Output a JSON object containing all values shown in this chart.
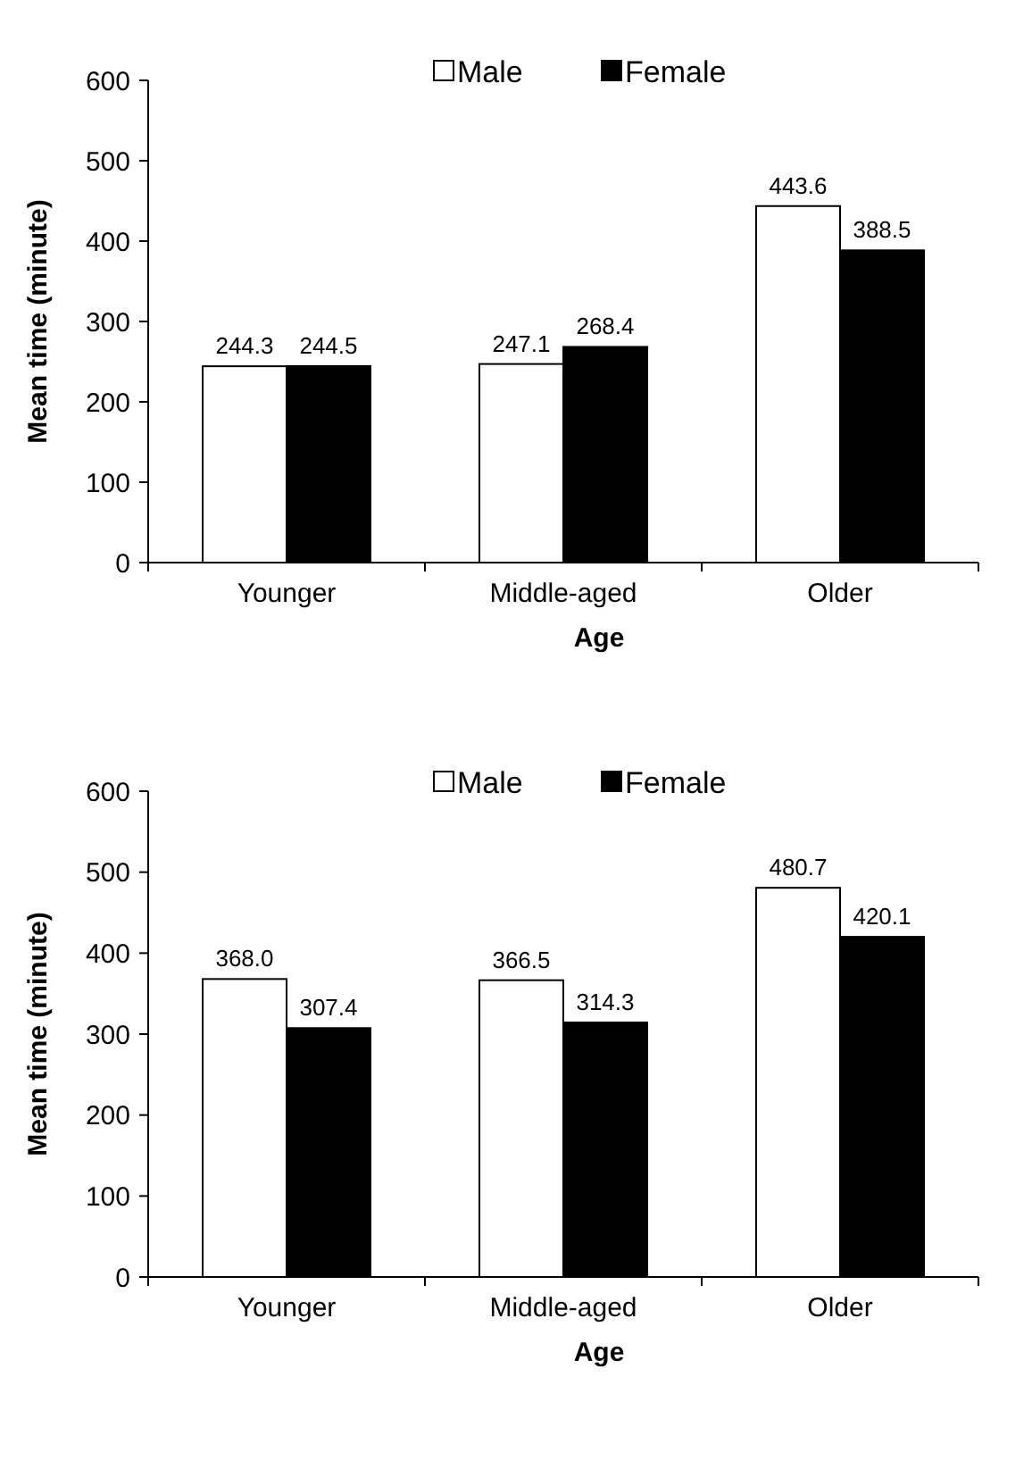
{
  "chart_data": [
    {
      "type": "bar",
      "xlabel": "Age",
      "ylabel": "Mean time (minute)",
      "categories": [
        "Younger",
        "Middle-aged",
        "Older"
      ],
      "ylim": [
        0,
        600
      ],
      "yticks": [
        0,
        100,
        200,
        300,
        400,
        500,
        600
      ],
      "legend": "top",
      "data_labels": true,
      "grid": false,
      "series": [
        {
          "name": "Male",
          "color": "#ffffff",
          "values": [
            244.3,
            247.1,
            443.6
          ],
          "value_labels": [
            "244.3",
            "247.1",
            "443.6"
          ]
        },
        {
          "name": "Female",
          "color": "#000000",
          "values": [
            244.5,
            268.4,
            388.5
          ],
          "value_labels": [
            "244.5",
            "268.4",
            "388.5"
          ]
        }
      ]
    },
    {
      "type": "bar",
      "xlabel": "Age",
      "ylabel": "Mean time (minute)",
      "categories": [
        "Younger",
        "Middle-aged",
        "Older"
      ],
      "ylim": [
        0,
        600
      ],
      "yticks": [
        0,
        100,
        200,
        300,
        400,
        500,
        600
      ],
      "legend": "top",
      "data_labels": true,
      "grid": false,
      "series": [
        {
          "name": "Male",
          "color": "#ffffff",
          "values": [
            368.0,
            366.5,
            480.7
          ],
          "value_labels": [
            "368.0",
            "366.5",
            "480.7"
          ]
        },
        {
          "name": "Female",
          "color": "#000000",
          "values": [
            307.4,
            314.3,
            420.1
          ],
          "value_labels": [
            "307.4",
            "314.3",
            "420.1"
          ]
        }
      ]
    }
  ]
}
